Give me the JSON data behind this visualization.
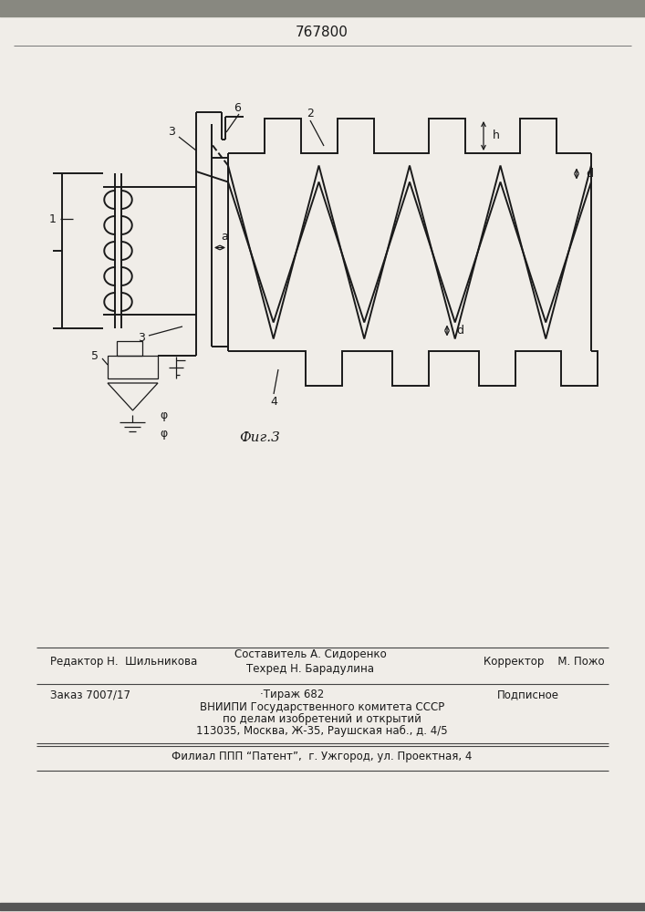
{
  "title": "767800",
  "fig_label": "Фиг.3",
  "bg_color": "#f0ede8",
  "line_color": "#1a1a1a",
  "lw": 1.4,
  "lw_thin": 0.9,
  "footer": {
    "line1_left": "Редактор Н.  Шильникова",
    "line1_center": "Составитель А. Сидоренко",
    "line1_center2": "Техред Н. Барадулина",
    "line1_right": "Корректор    М. Пожо",
    "line2_left": "Заказ 7007/17",
    "line2_center": "·Тираж 682",
    "line2_right": "Подписное",
    "line3": "ВНИИПИ Государственного комитета СССР",
    "line4": "по делам изобретений и открытий",
    "line5": "113035, Москва, Ж-35, Раушская наб., д. 4/5",
    "line6": "Филиал ППП “Патент”,  г. Ужгород, ул. Проектная, 4"
  }
}
